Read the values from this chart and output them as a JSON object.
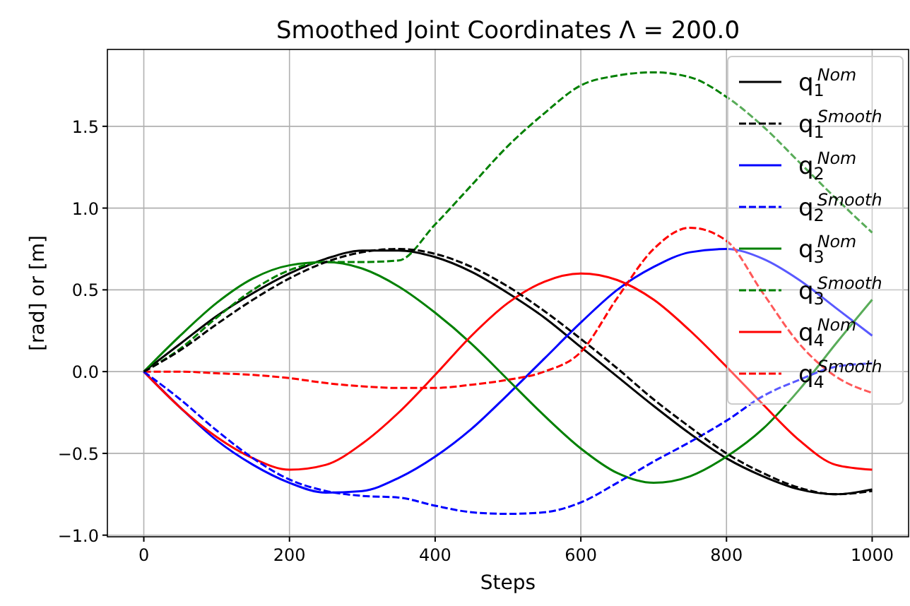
{
  "chart_data": {
    "type": "line",
    "title": "Smoothed Joint Coordinates Λ = 200.0",
    "xlabel": "Steps",
    "ylabel": "[rad] or [m]",
    "x": [
      0,
      50,
      100,
      150,
      200,
      250,
      300,
      350,
      400,
      450,
      500,
      550,
      600,
      650,
      700,
      750,
      800,
      850,
      900,
      950,
      1000
    ],
    "xlim": [
      -50,
      1050
    ],
    "xticks": [
      0,
      200,
      400,
      600,
      800,
      1000
    ],
    "ylim": [
      -1.01,
      1.97
    ],
    "yticks": [
      {
        "value": -1,
        "label": "−1.0"
      },
      {
        "value": -0.5,
        "label": "−0.5"
      },
      {
        "value": 0,
        "label": "0.0"
      },
      {
        "value": 0.5,
        "label": "0.5"
      },
      {
        "value": 1,
        "label": "1.0"
      },
      {
        "value": 1.5,
        "label": "1.5"
      }
    ],
    "grid": true,
    "legend": "top right",
    "series": [
      {
        "name": "q$_{1}$$^{Nom}$",
        "color": "#000000",
        "line_style": "solid",
        "values": [
          0,
          0.17,
          0.34,
          0.48,
          0.6,
          0.69,
          0.74,
          0.74,
          0.7,
          0.61,
          0.48,
          0.33,
          0.15,
          -0.03,
          -0.21,
          -0.38,
          -0.53,
          -0.64,
          -0.72,
          -0.75,
          -0.72
        ]
      },
      {
        "name": "q$_{1}$$^{Smooth}$",
        "color": "#000000",
        "line_style": "dashed",
        "values": [
          0,
          0.13,
          0.29,
          0.44,
          0.57,
          0.67,
          0.73,
          0.75,
          0.72,
          0.64,
          0.52,
          0.37,
          0.2,
          0.02,
          -0.17,
          -0.34,
          -0.5,
          -0.62,
          -0.71,
          -0.75,
          -0.73
        ]
      },
      {
        "name": "q$_{2}$$^{Nom}$",
        "color": "#0000ff",
        "line_style": "solid",
        "values": [
          0,
          -0.22,
          -0.42,
          -0.57,
          -0.68,
          -0.74,
          -0.73,
          -0.65,
          -0.52,
          -0.35,
          -0.14,
          0.08,
          0.3,
          0.5,
          0.64,
          0.73,
          0.75,
          0.69,
          0.56,
          0.39,
          0.22
        ]
      },
      {
        "name": "q$_{2}$$^{Smooth}$",
        "color": "#0000ff",
        "line_style": "dashed",
        "values": [
          0,
          -0.17,
          -0.36,
          -0.53,
          -0.66,
          -0.73,
          -0.76,
          -0.77,
          -0.82,
          -0.86,
          -0.87,
          -0.86,
          -0.8,
          -0.68,
          -0.55,
          -0.43,
          -0.3,
          -0.15,
          -0.05,
          0.03,
          0.05
        ]
      },
      {
        "name": "q$_{3}$$^{Nom}$",
        "color": "#008000",
        "line_style": "solid",
        "values": [
          0,
          0.22,
          0.42,
          0.57,
          0.65,
          0.67,
          0.63,
          0.52,
          0.36,
          0.17,
          -0.05,
          -0.27,
          -0.47,
          -0.62,
          -0.68,
          -0.64,
          -0.52,
          -0.35,
          -0.11,
          0.17,
          0.44
        ]
      },
      {
        "name": "q$_{3}$$^{Smooth}$",
        "color": "#008000",
        "line_style": "dashed",
        "values": [
          0,
          0.14,
          0.33,
          0.5,
          0.62,
          0.67,
          0.67,
          0.68,
          0.9,
          1.14,
          1.38,
          1.58,
          1.75,
          1.81,
          1.83,
          1.8,
          1.68,
          1.5,
          1.28,
          1.06,
          0.85
        ]
      },
      {
        "name": "q$_{4}$$^{Nom}$",
        "color": "#ff0000",
        "line_style": "solid",
        "values": [
          0,
          -0.22,
          -0.4,
          -0.53,
          -0.6,
          -0.57,
          -0.44,
          -0.25,
          -0.02,
          0.22,
          0.42,
          0.55,
          0.6,
          0.56,
          0.44,
          0.25,
          0.03,
          -0.2,
          -0.42,
          -0.57,
          -0.6
        ]
      },
      {
        "name": "q$_{4}$$^{Smooth}$",
        "color": "#ff0000",
        "line_style": "dashed",
        "values": [
          0,
          0,
          -0.01,
          -0.02,
          -0.04,
          -0.07,
          -0.09,
          -0.1,
          -0.1,
          -0.08,
          -0.05,
          0,
          0.12,
          0.45,
          0.75,
          0.88,
          0.8,
          0.48,
          0.17,
          -0.03,
          -0.13
        ]
      }
    ]
  }
}
